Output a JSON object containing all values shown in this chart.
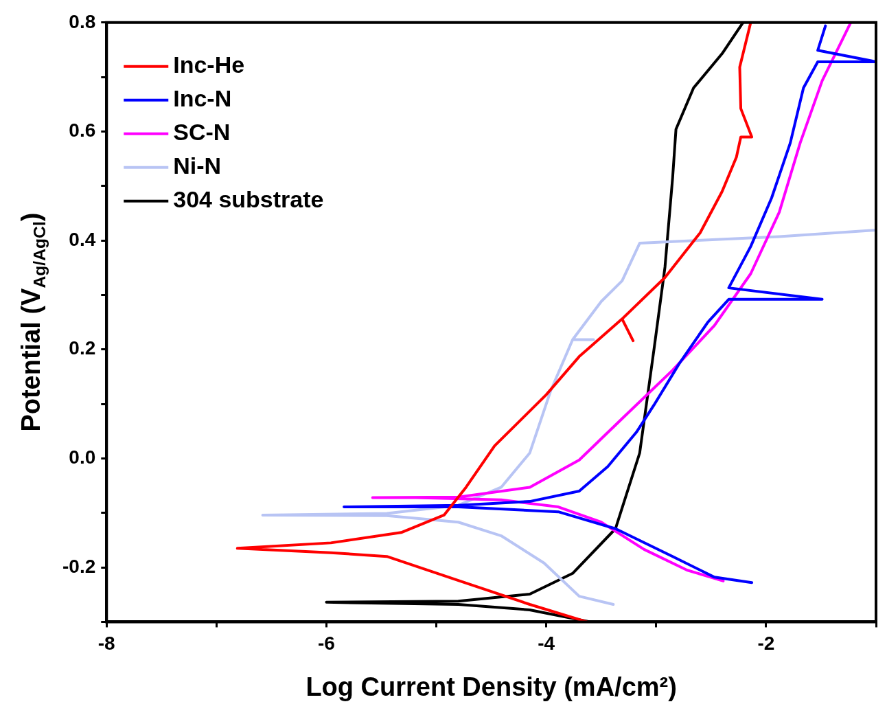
{
  "chart_data": {
    "type": "line",
    "xlabel": "Log Current Density (mA/cm²)",
    "ylabel": "Potential (V$_{Ag/AgCl}$)",
    "xlim": [
      -8,
      -1
    ],
    "ylim": [
      -0.3,
      0.8
    ],
    "xticks": [
      -8,
      {
        "value": -7,
        "label": null
      },
      -6,
      {
        "value": -5,
        "label": null
      },
      -4,
      {
        "value": -3,
        "label": null
      },
      -2,
      {
        "value": -1,
        "label": null
      }
    ],
    "yticks": [
      {
        "value": -0.3,
        "label": null
      },
      -0.2,
      {
        "value": -0.1,
        "label": null
      },
      {
        "value": 0,
        "label": "0.0"
      },
      {
        "value": 0.1,
        "label": null
      },
      0.2,
      {
        "value": 0.3,
        "label": null
      },
      0.4,
      {
        "value": 0.5,
        "label": null
      },
      0.6,
      {
        "value": 0.7,
        "label": null
      },
      0.8
    ],
    "grid": false,
    "legend": "top left",
    "marker": "none",
    "line_style": "solid",
    "series": [
      {
        "name": "Inc-He",
        "color": "#ff0000",
        "x": [
          -3.63,
          -4.15,
          -4.8,
          -5.45,
          -5.96,
          -6.81,
          -5.96,
          -5.32,
          -4.93,
          -4.73,
          -4.47,
          -4.0,
          -3.7,
          -3.31,
          -3.21,
          -3.31,
          -2.92,
          -2.6,
          -2.4,
          -2.27,
          -2.23,
          -2.13,
          -2.23,
          -2.24,
          -2.14
        ],
        "values": [
          -0.3,
          -0.268,
          -0.224,
          -0.18,
          -0.173,
          -0.165,
          -0.155,
          -0.136,
          -0.104,
          -0.053,
          0.023,
          0.117,
          0.187,
          0.256,
          0.216,
          0.256,
          0.332,
          0.414,
          0.49,
          0.553,
          0.59,
          0.59,
          0.642,
          0.718,
          0.8
        ]
      },
      {
        "name": "Inc-N",
        "color": "#0000ff",
        "x": [
          -2.13,
          -2.47,
          -2.85,
          -3.37,
          -3.89,
          -4.8,
          -5.84,
          -4.8,
          -4.15,
          -3.7,
          -3.44,
          -3.18,
          -3.02,
          -2.79,
          -2.53,
          -2.34,
          -1.49,
          -2.34,
          -2.14,
          -1.95,
          -1.78,
          -1.66,
          -1.53,
          -1.0,
          -1.53,
          -1.46
        ],
        "values": [
          -0.228,
          -0.218,
          -0.18,
          -0.129,
          -0.098,
          -0.089,
          -0.089,
          -0.086,
          -0.079,
          -0.06,
          -0.015,
          0.048,
          0.098,
          0.174,
          0.25,
          0.292,
          0.292,
          0.313,
          0.389,
          0.478,
          0.579,
          0.68,
          0.728,
          0.728,
          0.749,
          0.794
        ]
      },
      {
        "name": "SC-N",
        "color": "#ff00ff",
        "x": [
          -2.39,
          -2.72,
          -3.11,
          -3.5,
          -3.89,
          -4.41,
          -5.19,
          -5.58,
          -4.8,
          -4.15,
          -3.7,
          -3.31,
          -2.85,
          -2.47,
          -2.14,
          -1.88,
          -1.69,
          -1.49,
          -1.23
        ],
        "values": [
          -0.225,
          -0.205,
          -0.167,
          -0.117,
          -0.089,
          -0.076,
          -0.072,
          -0.072,
          -0.071,
          -0.053,
          -0.003,
          0.073,
          0.162,
          0.244,
          0.339,
          0.452,
          0.579,
          0.693,
          0.8
        ]
      },
      {
        "name": "Ni-N",
        "color": "#b8c4f4",
        "x": [
          -3.39,
          -3.7,
          -4.02,
          -4.41,
          -4.8,
          -5.45,
          -6.58,
          -5.45,
          -4.8,
          -4.41,
          -4.15,
          -3.96,
          -3.76,
          -3.57,
          -3.76,
          -3.5,
          -3.31,
          -3.15,
          -2.85,
          -1.88,
          -1.0
        ],
        "values": [
          -0.268,
          -0.253,
          -0.192,
          -0.142,
          -0.117,
          -0.105,
          -0.104,
          -0.101,
          -0.086,
          -0.053,
          0.01,
          0.124,
          0.218,
          0.218,
          0.218,
          0.288,
          0.326,
          0.395,
          0.398,
          0.407,
          0.419
        ]
      },
      {
        "name": "304 substrate",
        "color": "#000000",
        "x": [
          -3.6,
          -4.15,
          -4.8,
          -6.0,
          -4.8,
          -4.15,
          -3.76,
          -3.37,
          -3.15,
          -3.02,
          -2.92,
          -2.85,
          -2.82,
          -2.66,
          -2.4,
          -2.21
        ],
        "values": [
          -0.3,
          -0.278,
          -0.268,
          -0.264,
          -0.262,
          -0.249,
          -0.211,
          -0.129,
          0.01,
          0.2,
          0.351,
          0.516,
          0.604,
          0.68,
          0.743,
          0.8
        ]
      }
    ]
  }
}
